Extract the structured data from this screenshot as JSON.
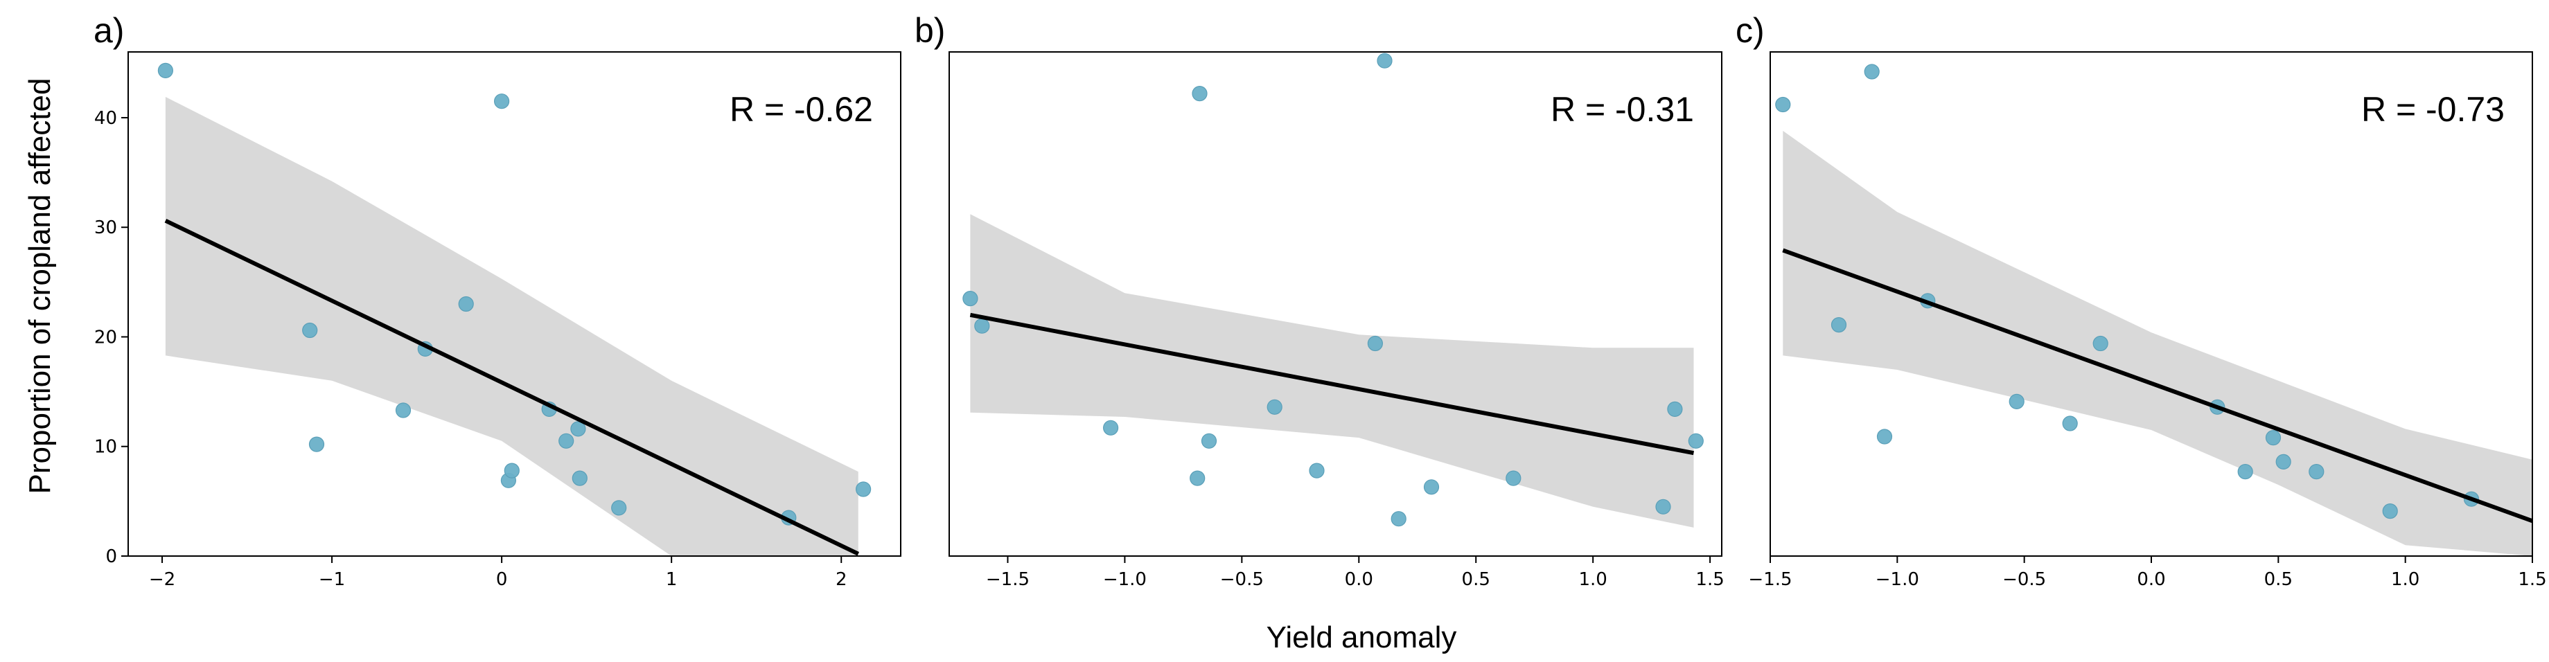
{
  "figure": {
    "shared_xlabel": "Yield anomaly",
    "shared_ylabel": "Proportion of cropland affected",
    "colors": {
      "point": "#6ab0c8",
      "point_edge": "#5a9fb8",
      "band": "#d9d9d9",
      "line": "#000000"
    }
  },
  "chart_data": [
    {
      "type": "scatter",
      "panel_label": "a)",
      "annotation": "R = -0.62",
      "xlabel": "Yield anomaly",
      "ylabel": "Proportion of cropland affected",
      "xlim": [
        -2.2,
        2.35
      ],
      "ylim": [
        0,
        46
      ],
      "xticks": [
        -2,
        -1,
        0,
        1,
        2
      ],
      "xtick_labels": [
        "−2",
        "−1",
        "0",
        "1",
        "2"
      ],
      "yticks": [
        0,
        10,
        20,
        30,
        40
      ],
      "ytick_labels": [
        "0",
        "10",
        "20",
        "30",
        "40"
      ],
      "points": [
        {
          "x": -1.98,
          "y": 44.3
        },
        {
          "x": -1.13,
          "y": 20.6
        },
        {
          "x": -1.09,
          "y": 10.2
        },
        {
          "x": -0.58,
          "y": 13.3
        },
        {
          "x": -0.45,
          "y": 18.9
        },
        {
          "x": -0.21,
          "y": 23.0
        },
        {
          "x": 0.0,
          "y": 41.5
        },
        {
          "x": 0.04,
          "y": 6.9
        },
        {
          "x": 0.06,
          "y": 7.8
        },
        {
          "x": 0.28,
          "y": 13.4
        },
        {
          "x": 0.38,
          "y": 10.5
        },
        {
          "x": 0.45,
          "y": 11.6
        },
        {
          "x": 0.46,
          "y": 7.1
        },
        {
          "x": 0.69,
          "y": 4.4
        },
        {
          "x": 1.69,
          "y": 3.5
        },
        {
          "x": 2.13,
          "y": 6.1
        }
      ],
      "fit": {
        "x": [
          -1.98,
          2.1
        ],
        "y": [
          30.6,
          0.2
        ]
      },
      "ci_band": {
        "x": [
          -1.98,
          -1.0,
          0.0,
          1.0,
          2.1
        ],
        "upper": [
          41.9,
          34.2,
          25.3,
          16.0,
          7.7
        ],
        "lower": [
          18.3,
          16.0,
          10.5,
          0.0,
          0.0
        ]
      }
    },
    {
      "type": "scatter",
      "panel_label": "b)",
      "annotation": "R = -0.31",
      "xlabel": "Yield anomaly",
      "ylabel": "",
      "xlim": [
        -1.75,
        1.55
      ],
      "ylim": [
        0,
        46
      ],
      "xticks": [
        -1.5,
        -1.0,
        -0.5,
        0.0,
        0.5,
        1.0,
        1.5
      ],
      "xtick_labels": [
        "−1.5",
        "−1.0",
        "−0.5",
        "0.0",
        "0.5",
        "1.0",
        "1.5"
      ],
      "yticks": [],
      "ytick_labels": [],
      "points": [
        {
          "x": -1.66,
          "y": 23.5
        },
        {
          "x": -1.61,
          "y": 21.0
        },
        {
          "x": -1.06,
          "y": 11.7
        },
        {
          "x": -0.69,
          "y": 7.1
        },
        {
          "x": -0.68,
          "y": 42.2
        },
        {
          "x": -0.64,
          "y": 10.5
        },
        {
          "x": -0.36,
          "y": 13.6
        },
        {
          "x": -0.18,
          "y": 7.8
        },
        {
          "x": 0.07,
          "y": 19.4
        },
        {
          "x": 0.11,
          "y": 45.2
        },
        {
          "x": 0.17,
          "y": 3.4
        },
        {
          "x": 0.31,
          "y": 6.3
        },
        {
          "x": 0.66,
          "y": 7.1
        },
        {
          "x": 1.3,
          "y": 4.5
        },
        {
          "x": 1.35,
          "y": 13.4
        },
        {
          "x": 1.44,
          "y": 10.5
        }
      ],
      "fit": {
        "x": [
          -1.66,
          1.43
        ],
        "y": [
          22.0,
          9.4
        ]
      },
      "ci_band": {
        "x": [
          -1.66,
          -1.0,
          0.0,
          1.0,
          1.43
        ],
        "upper": [
          31.2,
          24.0,
          20.2,
          19.0,
          19.0
        ],
        "lower": [
          13.1,
          12.7,
          10.8,
          4.5,
          2.6
        ]
      }
    },
    {
      "type": "scatter",
      "panel_label": "c)",
      "annotation": "R = -0.73",
      "xlabel": "Yield anomaly",
      "ylabel": "",
      "xlim": [
        -1.5,
        1.5
      ],
      "ylim": [
        0,
        46
      ],
      "xticks": [
        -1.5,
        -1.0,
        -0.5,
        0.0,
        0.5,
        1.0,
        1.5
      ],
      "xtick_labels": [
        "−1.5",
        "−1.0",
        "−0.5",
        "0.0",
        "0.5",
        "1.0",
        "1.5"
      ],
      "yticks": [],
      "ytick_labels": [],
      "points": [
        {
          "x": -1.45,
          "y": 41.2
        },
        {
          "x": -1.23,
          "y": 21.1
        },
        {
          "x": -1.1,
          "y": 44.2
        },
        {
          "x": -1.05,
          "y": 10.9
        },
        {
          "x": -0.88,
          "y": 23.3
        },
        {
          "x": -0.53,
          "y": 14.1
        },
        {
          "x": -0.32,
          "y": 12.1
        },
        {
          "x": -0.2,
          "y": 19.4
        },
        {
          "x": 0.26,
          "y": 13.6
        },
        {
          "x": 0.37,
          "y": 7.7
        },
        {
          "x": 0.48,
          "y": 10.8
        },
        {
          "x": 0.52,
          "y": 8.6
        },
        {
          "x": 0.65,
          "y": 7.7
        },
        {
          "x": 0.94,
          "y": 4.1
        },
        {
          "x": 1.26,
          "y": 5.2
        }
      ],
      "fit": {
        "x": [
          -1.45,
          1.5
        ],
        "y": [
          27.9,
          3.2
        ]
      },
      "ci_band": {
        "x": [
          -1.45,
          -1.0,
          0.0,
          0.5,
          1.0,
          1.5
        ],
        "upper": [
          38.8,
          31.4,
          20.4,
          16.0,
          11.6,
          8.8
        ],
        "lower": [
          18.3,
          17.0,
          11.5,
          6.5,
          1.0,
          0.0
        ]
      }
    }
  ]
}
